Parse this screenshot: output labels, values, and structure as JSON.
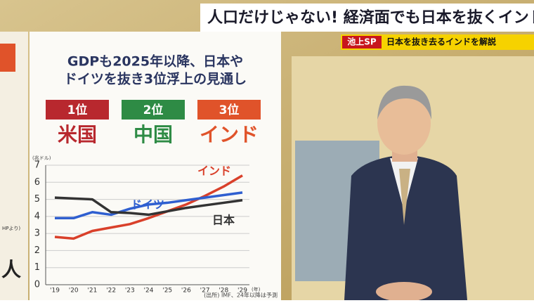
{
  "banner": {
    "headline": "人口だけじゃない! 経済面でも日本を抜くインド",
    "program": "池上SP",
    "subtitle": "日本を抜き去るインドを解説"
  },
  "board": {
    "title_line1": "GDPも2025年以降、日本や",
    "title_line2": "ドイツを抜き3位浮上の見通し",
    "ranks": [
      {
        "rank": "1位",
        "country": "米国",
        "color": "#b8282e"
      },
      {
        "rank": "2位",
        "country": "中国",
        "color": "#2e8b45"
      },
      {
        "rank": "3位",
        "country": "インド",
        "color": "#e0532a"
      }
    ],
    "side_note": "HPより)",
    "side_text": "人"
  },
  "chart_data": {
    "type": "line",
    "y_unit": "(兆ドル)",
    "x_unit": "(年)",
    "source": "(出所) IMF、24年以降は予測",
    "categories": [
      "'19",
      "'20",
      "'21",
      "'22",
      "'23",
      "'24",
      "'25",
      "'26",
      "'27",
      "'28",
      "'29"
    ],
    "ylim": [
      0,
      7
    ],
    "yticks": [
      0,
      1,
      2,
      3,
      4,
      5,
      6,
      7
    ],
    "grid": true,
    "series": [
      {
        "name": "インド",
        "color": "#d9402a",
        "values": [
          2.8,
          2.7,
          3.15,
          3.35,
          3.55,
          3.9,
          4.3,
          4.7,
          5.2,
          5.75,
          6.4
        ]
      },
      {
        "name": "ドイツ",
        "color": "#2f5fd0",
        "values": [
          3.9,
          3.9,
          4.25,
          4.1,
          4.45,
          4.7,
          4.8,
          4.95,
          5.1,
          5.25,
          5.4
        ]
      },
      {
        "name": "日本",
        "color": "#333333",
        "values": [
          5.1,
          5.05,
          5.0,
          4.25,
          4.2,
          4.1,
          4.3,
          4.5,
          4.65,
          4.8,
          4.95
        ]
      }
    ]
  }
}
